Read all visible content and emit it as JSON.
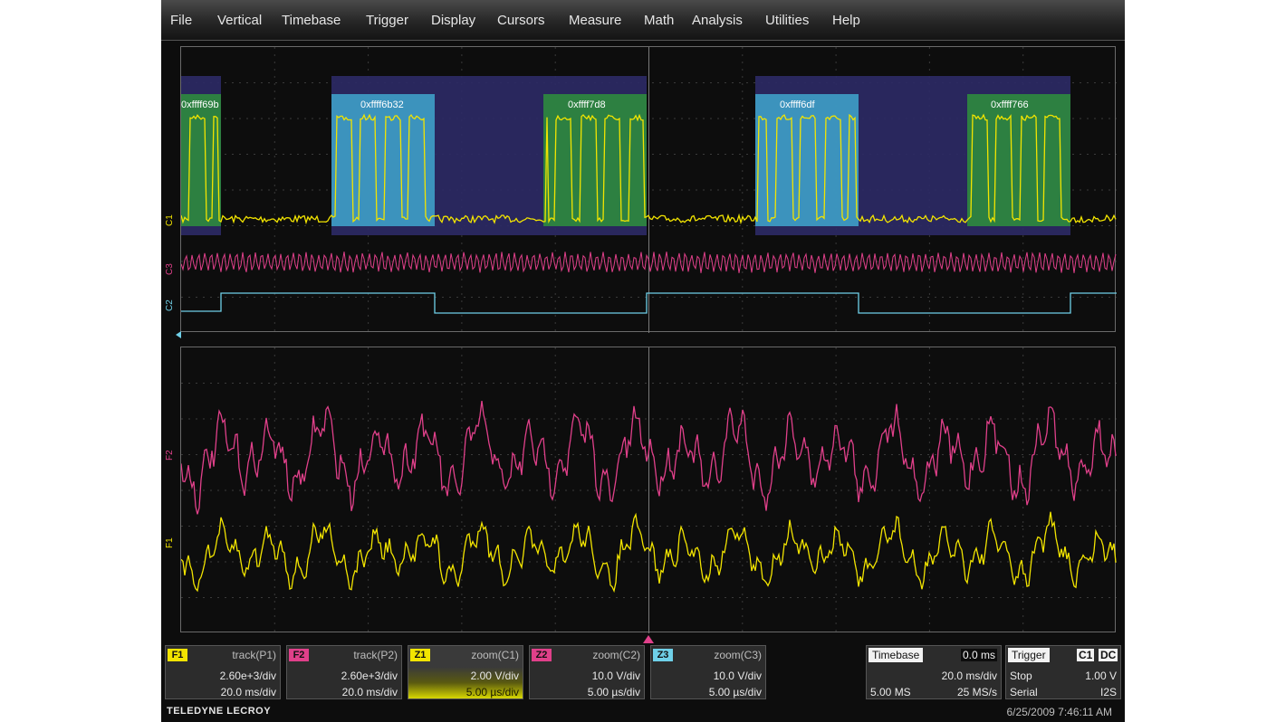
{
  "menu": [
    "File",
    "Vertical",
    "Timebase",
    "Trigger",
    "Display",
    "Cursors",
    "Measure",
    "Math",
    "Analysis",
    "Utilities",
    "Help"
  ],
  "decode_tags": [
    "0xffff69b",
    "0xffff6b32",
    "0xffff7d8",
    "0xffff6df",
    "0xffff766"
  ],
  "channel_labels": {
    "upper_c1": "C1",
    "upper_c3": "C3",
    "upper_c2": "C2",
    "lower_f2": "F2",
    "lower_f1": "F1"
  },
  "colors": {
    "yellow": "#f2e400",
    "magenta": "#e0408a",
    "cyan": "#6fd0e8",
    "green_frame": "#2e8b3e",
    "blue_frame": "#3ea0c8",
    "purple_bg": "#2c2a66"
  },
  "panels": [
    {
      "id": "F1",
      "title": "track(P1)",
      "line1": "2.60e+3/div",
      "line2": "20.0 ms/div",
      "badge_color": "#f2e400"
    },
    {
      "id": "F2",
      "title": "track(P2)",
      "line1": "2.60e+3/div",
      "line2": "20.0 ms/div",
      "badge_color": "#e0408a"
    },
    {
      "id": "Z1",
      "title": "zoom(C1)",
      "line1": "2.00 V/div",
      "line2": "5.00 µs/div",
      "badge_color": "#f2e400"
    },
    {
      "id": "Z2",
      "title": "zoom(C2)",
      "line1": "10.0 V/div",
      "line2": "5.00 µs/div",
      "badge_color": "#e0408a"
    },
    {
      "id": "Z3",
      "title": "zoom(C3)",
      "line1": "10.0 V/div",
      "line2": "5.00 µs/div",
      "badge_color": "#6fd0e8"
    }
  ],
  "timebase": {
    "label": "Timebase",
    "offset": "0.0 ms",
    "per_div": "20.0 ms/div",
    "samples": "5.00 MS",
    "rate": "25 MS/s"
  },
  "trigger": {
    "label": "Trigger",
    "source": "C1",
    "coupling": "DC",
    "mode": "Stop",
    "level": "1.00 V",
    "type": "Serial",
    "protocol": "I2S"
  },
  "footer": {
    "logo": "TELEDYNE LECROY",
    "datetime": "6/25/2009 7:46:11 AM"
  }
}
